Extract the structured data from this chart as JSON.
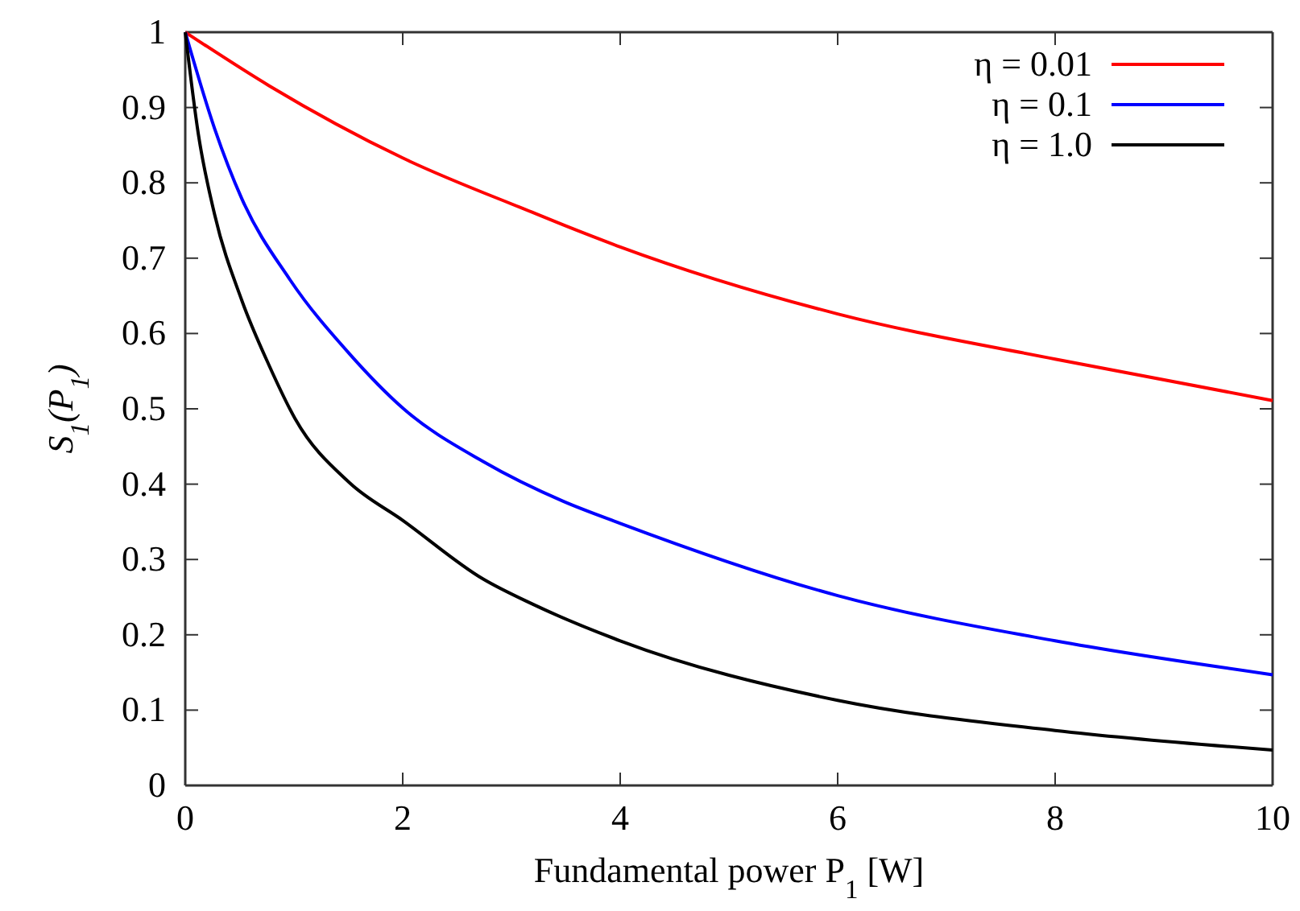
{
  "chart_data": {
    "type": "line",
    "xlabel": "Fundamental power P$_{1}$ [W]",
    "ylabel": "S$_{1}$(P$_{1}$)",
    "xlim": [
      0,
      10
    ],
    "ylim": [
      0,
      1
    ],
    "xticks": [
      0,
      2,
      4,
      6,
      8,
      10
    ],
    "yticks": [
      0,
      0.1,
      0.2,
      0.3,
      0.4,
      0.5,
      0.6,
      0.7,
      0.8,
      0.9,
      1
    ],
    "grid": false,
    "legend": "top right",
    "marker": "none",
    "line_style": "solid",
    "series": [
      {
        "name": "η = 0.01",
        "color": "#ff0000",
        "x": [
          0,
          0.77,
          2,
          3.19,
          3.48,
          4,
          6,
          8,
          10
        ],
        "values": [
          1,
          0.929,
          0.833,
          0.761,
          0.744,
          0.715,
          0.626,
          0.566,
          0.511
        ]
      },
      {
        "name": "η = 0.1",
        "color": "#0000ff",
        "x": [
          0,
          0.27,
          0.52,
          0.96,
          1.51,
          2,
          2.74,
          3.48,
          4,
          6,
          8,
          10
        ],
        "values": [
          1,
          0.872,
          0.779,
          0.672,
          0.573,
          0.501,
          0.43,
          0.377,
          0.348,
          0.252,
          0.192,
          0.147
        ]
      },
      {
        "name": "η = 1.0",
        "color": "#000000",
        "x": [
          0,
          0.12,
          0.27,
          0.52,
          0.77,
          1.01,
          1.51,
          2,
          2.74,
          3.19,
          4,
          6,
          8,
          10
        ],
        "values": [
          1,
          0.865,
          0.758,
          0.644,
          0.558,
          0.487,
          0.402,
          0.352,
          0.274,
          0.241,
          0.192,
          0.113,
          0.073,
          0.047
        ]
      }
    ]
  }
}
